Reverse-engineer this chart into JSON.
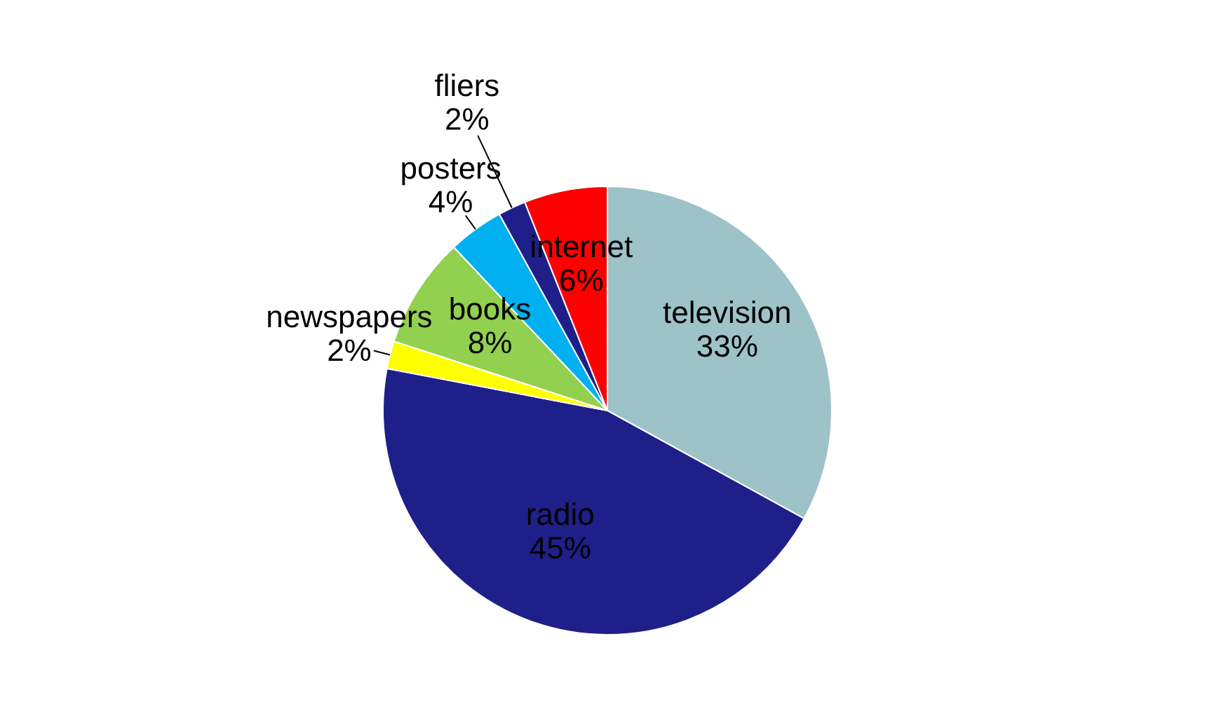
{
  "chart_data": {
    "type": "pie",
    "categories": [
      "television",
      "radio",
      "newspapers",
      "books",
      "posters",
      "fliers",
      "internet"
    ],
    "values": [
      33,
      45,
      2,
      8,
      4,
      2,
      6
    ],
    "value_labels": [
      "33%",
      "45%",
      "2%",
      "8%",
      "4%",
      "2%",
      "6%"
    ],
    "colors": [
      "#9dc3c9",
      "#1f1f8a",
      "#ffff00",
      "#92d050",
      "#00b0f0",
      "#1f1f8a",
      "#ff0000"
    ],
    "legend": false
  }
}
